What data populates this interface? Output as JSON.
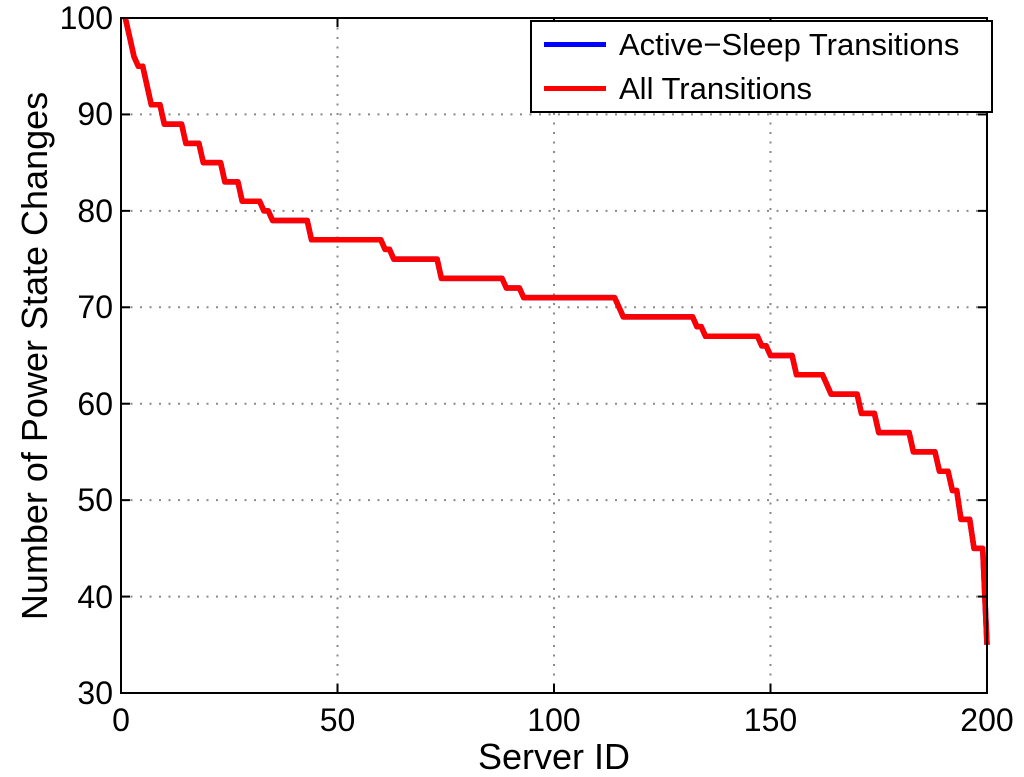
{
  "chart_data": {
    "type": "line",
    "title": "",
    "xlabel": "Server ID",
    "ylabel": "Number of Power State Changes",
    "xlim": [
      0,
      200
    ],
    "ylim": [
      30,
      100
    ],
    "x_ticks": [
      0,
      50,
      100,
      150,
      200
    ],
    "y_ticks": [
      30,
      40,
      50,
      60,
      70,
      80,
      90,
      100
    ],
    "grid": "dotted",
    "grid_color": "#8a8a8a",
    "axis_color": "#000000",
    "legend_position": "top-right",
    "x_start": 1,
    "series": [
      {
        "name": "Active−Sleep Transitions",
        "color": "#0000ff",
        "note_visibility": "completely overlapped by All Transitions line",
        "values": [
          100,
          98,
          96,
          95,
          95,
          93,
          91,
          91,
          91,
          89,
          89,
          89,
          89,
          89,
          87,
          87,
          87,
          87,
          85,
          85,
          85,
          85,
          85,
          83,
          83,
          83,
          83,
          81,
          81,
          81,
          81,
          81,
          80,
          80,
          79,
          79,
          79,
          79,
          79,
          79,
          79,
          79,
          79,
          77,
          77,
          77,
          77,
          77,
          77,
          77,
          77,
          77,
          77,
          77,
          77,
          77,
          77,
          77,
          77,
          77,
          76,
          76,
          75,
          75,
          75,
          75,
          75,
          75,
          75,
          75,
          75,
          75,
          75,
          73,
          73,
          73,
          73,
          73,
          73,
          73,
          73,
          73,
          73,
          73,
          73,
          73,
          73,
          73,
          72,
          72,
          72,
          72,
          71,
          71,
          71,
          71,
          71,
          71,
          71,
          71,
          71,
          71,
          71,
          71,
          71,
          71,
          71,
          71,
          71,
          71,
          71,
          71,
          71,
          71,
          70,
          69,
          69,
          69,
          69,
          69,
          69,
          69,
          69,
          69,
          69,
          69,
          69,
          69,
          69,
          69,
          69,
          69,
          68,
          68,
          67,
          67,
          67,
          67,
          67,
          67,
          67,
          67,
          67,
          67,
          67,
          67,
          67,
          66,
          66,
          65,
          65,
          65,
          65,
          65,
          65,
          63,
          63,
          63,
          63,
          63,
          63,
          63,
          62,
          61,
          61,
          61,
          61,
          61,
          61,
          61,
          59,
          59,
          59,
          59,
          57,
          57,
          57,
          57,
          57,
          57,
          57,
          57,
          55,
          55,
          55,
          55,
          55,
          55,
          53,
          53,
          53,
          51,
          51,
          48,
          48,
          48,
          45,
          45,
          45,
          35
        ]
      },
      {
        "name": "All Transitions",
        "color": "#ff0000",
        "values": [
          100,
          98,
          96,
          95,
          95,
          93,
          91,
          91,
          91,
          89,
          89,
          89,
          89,
          89,
          87,
          87,
          87,
          87,
          85,
          85,
          85,
          85,
          85,
          83,
          83,
          83,
          83,
          81,
          81,
          81,
          81,
          81,
          80,
          80,
          79,
          79,
          79,
          79,
          79,
          79,
          79,
          79,
          79,
          77,
          77,
          77,
          77,
          77,
          77,
          77,
          77,
          77,
          77,
          77,
          77,
          77,
          77,
          77,
          77,
          77,
          76,
          76,
          75,
          75,
          75,
          75,
          75,
          75,
          75,
          75,
          75,
          75,
          75,
          73,
          73,
          73,
          73,
          73,
          73,
          73,
          73,
          73,
          73,
          73,
          73,
          73,
          73,
          73,
          72,
          72,
          72,
          72,
          71,
          71,
          71,
          71,
          71,
          71,
          71,
          71,
          71,
          71,
          71,
          71,
          71,
          71,
          71,
          71,
          71,
          71,
          71,
          71,
          71,
          71,
          70,
          69,
          69,
          69,
          69,
          69,
          69,
          69,
          69,
          69,
          69,
          69,
          69,
          69,
          69,
          69,
          69,
          69,
          68,
          68,
          67,
          67,
          67,
          67,
          67,
          67,
          67,
          67,
          67,
          67,
          67,
          67,
          67,
          66,
          66,
          65,
          65,
          65,
          65,
          65,
          65,
          63,
          63,
          63,
          63,
          63,
          63,
          63,
          62,
          61,
          61,
          61,
          61,
          61,
          61,
          61,
          59,
          59,
          59,
          59,
          57,
          57,
          57,
          57,
          57,
          57,
          57,
          57,
          55,
          55,
          55,
          55,
          55,
          55,
          53,
          53,
          53,
          51,
          51,
          48,
          48,
          48,
          45,
          45,
          45,
          35
        ]
      }
    ]
  },
  "labels": {
    "xlabel": "Server ID",
    "ylabel": "Number of Power State Changes"
  }
}
